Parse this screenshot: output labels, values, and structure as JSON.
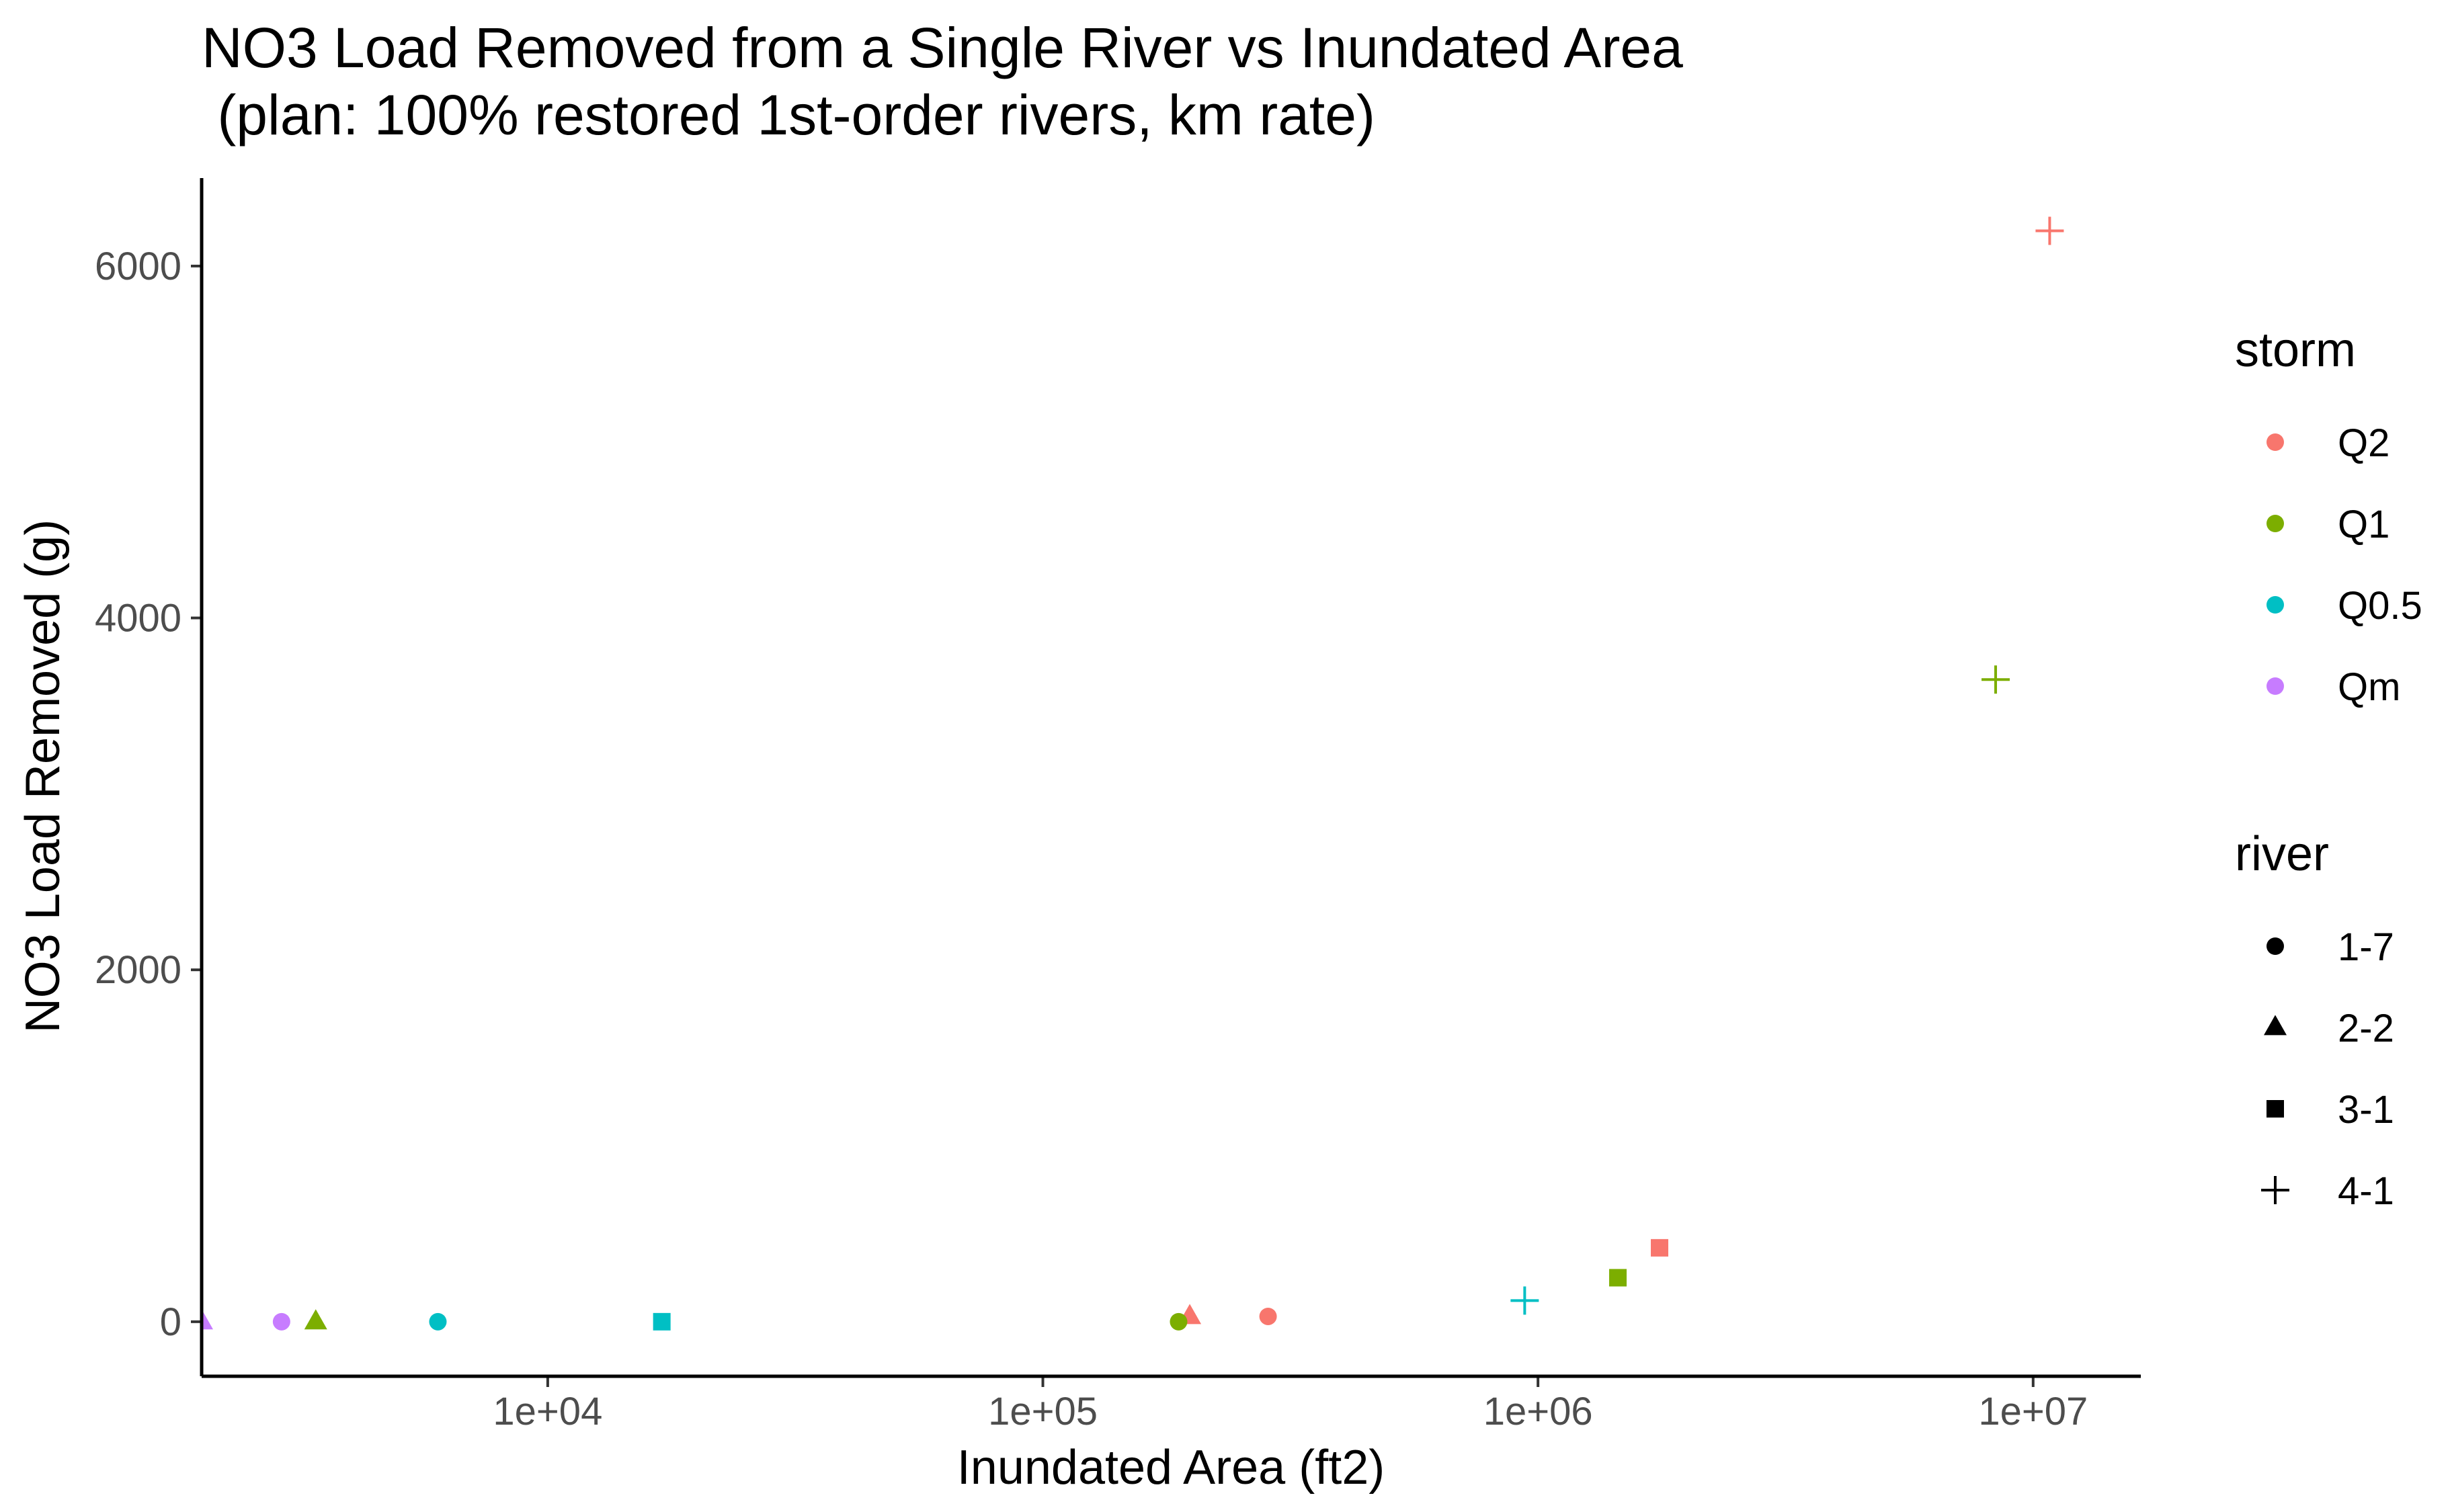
{
  "chart_data": {
    "type": "scatter",
    "title_line1": "NO3 Load Removed from a Single River vs Inundated Area",
    "title_line2": " (plan: 100% restored 1st-order rivers, km rate)",
    "xlabel": "Inundated Area (ft2)",
    "ylabel": "NO3 Load Removed (g)",
    "x_scale": "log10",
    "xlim": [
      2000,
      16500000
    ],
    "ylim": [
      -310,
      6500
    ],
    "x_ticks": [
      {
        "value": 10000,
        "label": "1e+04"
      },
      {
        "value": 100000,
        "label": "1e+05"
      },
      {
        "value": 1000000,
        "label": "1e+06"
      },
      {
        "value": 10000000,
        "label": "1e+07"
      }
    ],
    "y_ticks": [
      {
        "value": 0,
        "label": "0"
      },
      {
        "value": 2000,
        "label": "2000"
      },
      {
        "value": 4000,
        "label": "4000"
      },
      {
        "value": 6000,
        "label": "6000"
      }
    ],
    "grid": false,
    "storm_legend": {
      "title": "storm",
      "entries": [
        {
          "name": "Q2",
          "color": "#F8766D"
        },
        {
          "name": "Q1",
          "color": "#7CAE00"
        },
        {
          "name": "Q0.5",
          "color": "#00BFC4"
        },
        {
          "name": "Qm",
          "color": "#C77CFF"
        }
      ]
    },
    "river_legend": {
      "title": "river",
      "entries": [
        {
          "name": "1-7",
          "shape": "circle"
        },
        {
          "name": "2-2",
          "shape": "triangle"
        },
        {
          "name": "3-1",
          "shape": "square"
        },
        {
          "name": "4-1",
          "shape": "plus"
        }
      ]
    },
    "legend_position": "right",
    "points": [
      {
        "storm": "Q2",
        "river": "4-1",
        "x": 10800000,
        "y": 6200
      },
      {
        "storm": "Q1",
        "river": "4-1",
        "x": 8400000,
        "y": 3650
      },
      {
        "storm": "Q0.5",
        "river": "4-1",
        "x": 940000,
        "y": 120
      },
      {
        "storm": "Q2",
        "river": "3-1",
        "x": 1760000,
        "y": 420
      },
      {
        "storm": "Q1",
        "river": "3-1",
        "x": 1450000,
        "y": 250
      },
      {
        "storm": "Q0.5",
        "river": "3-1",
        "x": 17000,
        "y": 0
      },
      {
        "storm": "Q2",
        "river": "1-7",
        "x": 285000,
        "y": 30
      },
      {
        "storm": "Q2",
        "river": "2-2",
        "x": 198000,
        "y": 30
      },
      {
        "storm": "Q1",
        "river": "1-7",
        "x": 188000,
        "y": 0
      },
      {
        "storm": "Q0.5",
        "river": "1-7",
        "x": 6000,
        "y": 0
      },
      {
        "storm": "Q1",
        "river": "2-2",
        "x": 3400,
        "y": 0
      },
      {
        "storm": "Qm",
        "river": "1-7",
        "x": 2900,
        "y": 0
      },
      {
        "storm": "Qm",
        "river": "2-2",
        "x": 2000,
        "y": 0
      }
    ]
  }
}
